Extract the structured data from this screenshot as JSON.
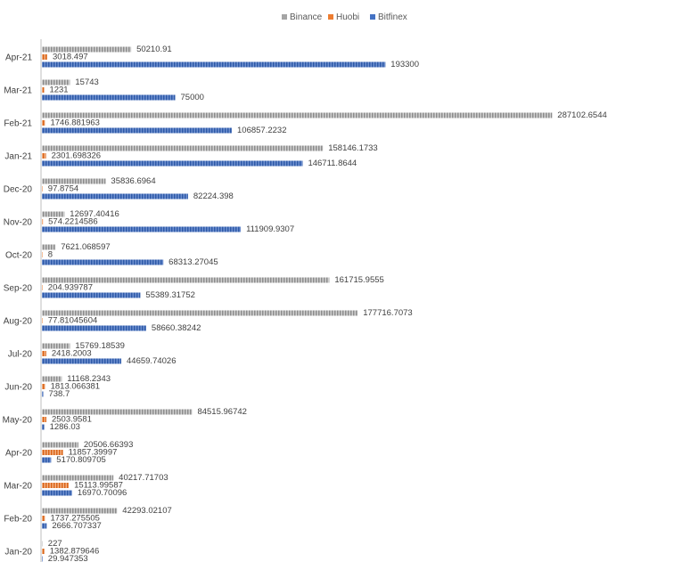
{
  "chart_data": {
    "type": "bar",
    "orientation": "horizontal",
    "title": "",
    "xlabel": "",
    "ylabel": "",
    "legend_position": "top",
    "grid": false,
    "xlim": [
      0,
      300000
    ],
    "categories": [
      "Apr-21",
      "Mar-21",
      "Feb-21",
      "Jan-21",
      "Dec-20",
      "Nov-20",
      "Oct-20",
      "Sep-20",
      "Aug-20",
      "Jul-20",
      "Jun-20",
      "May-20",
      "Apr-20",
      "Mar-20",
      "Feb-20",
      "Jan-20"
    ],
    "series": [
      {
        "name": "Binance",
        "color": "#A5A5A5",
        "values": [
          50210.91,
          15743,
          287102.6544,
          158146.1733,
          35836.6964,
          12697.40416,
          7621.068597,
          161715.9555,
          177716.7073,
          15769.18539,
          11168.2343,
          84515.96742,
          20506.66393,
          40217.71703,
          42293.02107,
          227
        ],
        "labels": [
          "50210.91",
          "15743",
          "287102.6544",
          "158146.1733",
          "35836.6964",
          "12697.40416",
          "7621.068597",
          "161715.9555",
          "177716.7073",
          "15769.18539",
          "11168.2343",
          "84515.96742",
          "20506.66393",
          "40217.71703",
          "42293.02107",
          "227"
        ]
      },
      {
        "name": "Huobi",
        "color": "#ED7D31",
        "values": [
          3018.497,
          1231,
          1746.881963,
          2301.698326,
          97.8754,
          574.2214586,
          8,
          204.939787,
          77.81045604,
          2418.2003,
          1813.066381,
          2503.9581,
          11857.39997,
          15113.99587,
          1737.275505,
          1382.879646
        ],
        "labels": [
          "3018.497",
          "1231",
          "1746.881963",
          "2301.698326",
          "97.8754",
          "574.2214586",
          "8",
          "204.939787",
          "77.81045604",
          "2418.2003",
          "1813.066381",
          "2503.9581",
          "11857.39997",
          "15113.99587",
          "1737.275505",
          "1382.879646"
        ]
      },
      {
        "name": "Bitfinex",
        "color": "#4472C4",
        "values": [
          193300,
          75000,
          106857.2232,
          146711.8644,
          82224.398,
          111909.9307,
          68313.27045,
          55389.31752,
          58660.38242,
          44659.74026,
          738.7,
          1286.03,
          5170.809705,
          16970.70096,
          2666.707337,
          29.947353
        ],
        "labels": [
          "193300",
          "75000",
          "106857.2232",
          "146711.8644",
          "82224.398",
          "111909.9307",
          "68313.27045",
          "55389.31752",
          "58660.38242",
          "44659.74026",
          "738.7",
          "1286.03",
          "5170.809705",
          "16970.70096",
          "2666.707337",
          "29.947353"
        ]
      }
    ]
  }
}
